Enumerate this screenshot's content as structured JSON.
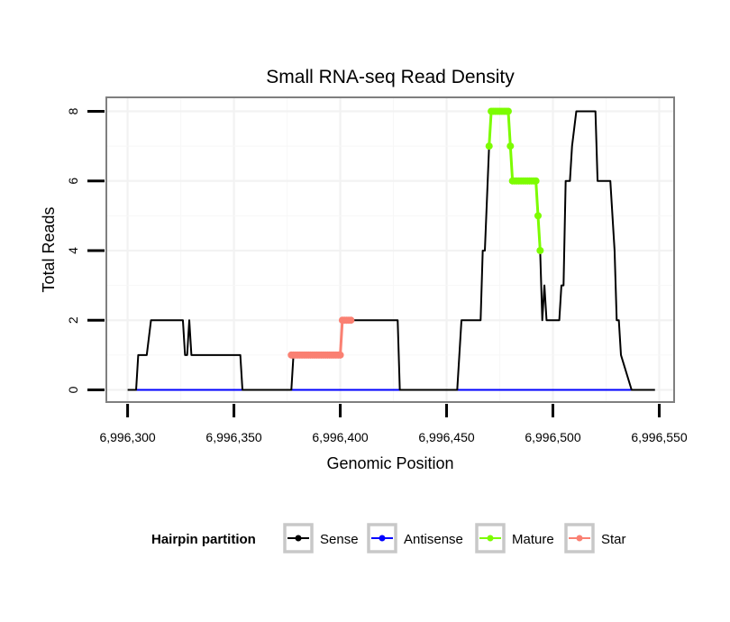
{
  "chart_data": {
    "type": "line",
    "title": "Small RNA-seq Read Density",
    "xlabel": "Genomic Position",
    "ylabel": "Total Reads",
    "xlim": [
      6996290,
      6996557
    ],
    "ylim": [
      -0.35,
      8.4
    ],
    "x_ticks": [
      6996300,
      6996350,
      6996400,
      6996450,
      6996500,
      6996550
    ],
    "x_tick_labels": [
      "6,996,300",
      "6,996,350",
      "6,996,400",
      "6,996,450",
      "6,996,500",
      "6,996,550"
    ],
    "y_ticks": [
      0,
      2,
      4,
      6,
      8
    ],
    "y_tick_labels": [
      "0",
      "2",
      "4",
      "6",
      "8"
    ],
    "grid": true,
    "legend": {
      "title": "Hairpin partition",
      "position": "bottom",
      "entries": [
        {
          "label": "Sense",
          "color": "#000000"
        },
        {
          "label": "Antisense",
          "color": "#0000ff"
        },
        {
          "label": "Mature",
          "color": "#7cfc00"
        },
        {
          "label": "Star",
          "color": "#fa8072"
        }
      ]
    },
    "series": [
      {
        "name": "Sense",
        "color": "#000000",
        "marker": false,
        "points": [
          [
            6996300,
            0
          ],
          [
            6996304,
            0
          ],
          [
            6996305,
            1
          ],
          [
            6996309,
            1
          ],
          [
            6996311,
            2
          ],
          [
            6996317,
            2
          ],
          [
            6996326,
            2
          ],
          [
            6996327,
            1
          ],
          [
            6996328,
            1
          ],
          [
            6996329,
            2
          ],
          [
            6996330,
            1
          ],
          [
            6996339,
            1
          ],
          [
            6996353,
            1
          ],
          [
            6996354,
            0
          ],
          [
            6996369,
            0
          ],
          [
            6996377,
            0
          ],
          [
            6996378,
            1
          ],
          [
            6996387,
            1
          ],
          [
            6996400,
            1
          ],
          [
            6996401,
            2
          ],
          [
            6996405,
            2
          ],
          [
            6996427,
            2
          ],
          [
            6996428,
            0
          ],
          [
            6996447,
            0
          ],
          [
            6996455,
            0
          ],
          [
            6996457,
            2
          ],
          [
            6996466,
            2
          ],
          [
            6996467,
            4
          ],
          [
            6996468,
            4
          ],
          [
            6996470,
            7
          ],
          [
            6996471,
            8
          ],
          [
            6996479,
            8
          ],
          [
            6996480,
            7
          ],
          [
            6996481,
            6
          ],
          [
            6996486,
            6
          ],
          [
            6996491,
            6
          ],
          [
            6996492,
            6
          ],
          [
            6996493,
            5
          ],
          [
            6996494,
            4
          ],
          [
            6996495,
            2
          ],
          [
            6996496,
            3
          ],
          [
            6996497,
            2
          ],
          [
            6996503,
            2
          ],
          [
            6996504,
            3
          ],
          [
            6996505,
            3
          ],
          [
            6996506,
            6
          ],
          [
            6996508,
            6
          ],
          [
            6996509,
            7
          ],
          [
            6996511,
            8
          ],
          [
            6996516,
            8
          ],
          [
            6996520,
            8
          ],
          [
            6996521,
            6
          ],
          [
            6996523,
            6
          ],
          [
            6996527,
            6
          ],
          [
            6996528,
            5
          ],
          [
            6996529,
            4
          ],
          [
            6996530,
            2
          ],
          [
            6996531,
            2
          ],
          [
            6996532,
            1
          ],
          [
            6996537,
            0
          ],
          [
            6996548,
            0
          ]
        ]
      },
      {
        "name": "Antisense",
        "color": "#0000ff",
        "marker": false,
        "points": [
          [
            6996304,
            0
          ],
          [
            6996537,
            0
          ]
        ]
      },
      {
        "name": "Mature",
        "color": "#7cfc00",
        "marker": true,
        "points": [
          [
            6996470,
            7
          ],
          [
            6996471,
            8
          ],
          [
            6996472,
            8
          ],
          [
            6996473,
            8
          ],
          [
            6996474,
            8
          ],
          [
            6996475,
            8
          ],
          [
            6996476,
            8
          ],
          [
            6996477,
            8
          ],
          [
            6996478,
            8
          ],
          [
            6996479,
            8
          ],
          [
            6996480,
            7
          ],
          [
            6996481,
            6
          ],
          [
            6996482,
            6
          ],
          [
            6996483,
            6
          ],
          [
            6996484,
            6
          ],
          [
            6996485,
            6
          ],
          [
            6996486,
            6
          ],
          [
            6996487,
            6
          ],
          [
            6996488,
            6
          ],
          [
            6996489,
            6
          ],
          [
            6996490,
            6
          ],
          [
            6996491,
            6
          ],
          [
            6996492,
            6
          ],
          [
            6996493,
            5
          ],
          [
            6996494,
            4
          ]
        ]
      },
      {
        "name": "Star",
        "color": "#fa8072",
        "marker": true,
        "points": [
          [
            6996377,
            1
          ],
          [
            6996378,
            1
          ],
          [
            6996379,
            1
          ],
          [
            6996380,
            1
          ],
          [
            6996381,
            1
          ],
          [
            6996382,
            1
          ],
          [
            6996383,
            1
          ],
          [
            6996384,
            1
          ],
          [
            6996385,
            1
          ],
          [
            6996386,
            1
          ],
          [
            6996387,
            1
          ],
          [
            6996388,
            1
          ],
          [
            6996389,
            1
          ],
          [
            6996390,
            1
          ],
          [
            6996391,
            1
          ],
          [
            6996392,
            1
          ],
          [
            6996393,
            1
          ],
          [
            6996394,
            1
          ],
          [
            6996395,
            1
          ],
          [
            6996396,
            1
          ],
          [
            6996397,
            1
          ],
          [
            6996398,
            1
          ],
          [
            6996399,
            1
          ],
          [
            6996400,
            1
          ],
          [
            6996401,
            2
          ],
          [
            6996402,
            2
          ],
          [
            6996403,
            2
          ],
          [
            6996404,
            2
          ],
          [
            6996405,
            2
          ]
        ]
      }
    ]
  }
}
